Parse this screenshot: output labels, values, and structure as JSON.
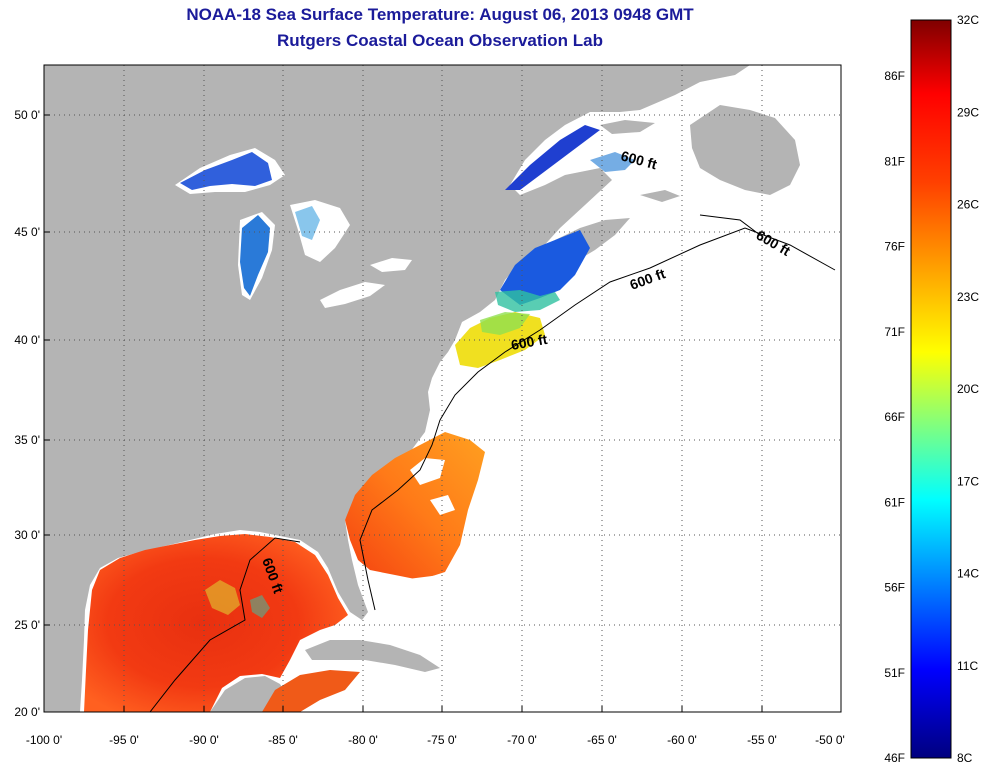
{
  "header": {
    "title_line1": "NOAA-18 Sea Surface Temperature:  August 06, 2013 0948 GMT",
    "title_line2": "Rutgers Coastal Ocean Observation Lab"
  },
  "map": {
    "lon_range": [
      -100,
      -50
    ],
    "lat_range": [
      20,
      52
    ],
    "lon_ticks": [
      "-100 0'",
      "-95 0'",
      "-90 0'",
      "-85 0'",
      "-80 0'",
      "-75 0'",
      "-70 0'",
      "-65 0'",
      "-60 0'",
      "-55 0'",
      "-50 0'"
    ],
    "lat_ticks": [
      "20 0'",
      "25 0'",
      "30 0'",
      "35 0'",
      "40 0'",
      "45 0'",
      "50 0'"
    ],
    "contour_label": "600 ft",
    "colors": {
      "land": "#b4b4b4",
      "no_data": "#ffffff",
      "grid": "#555555"
    }
  },
  "colorbar": {
    "celsius_labels": [
      "32C",
      "29C",
      "26C",
      "23C",
      "20C",
      "17C",
      "14C",
      "11C",
      "8C"
    ],
    "fahrenheit_labels": [
      "86F",
      "81F",
      "76F",
      "71F",
      "66F",
      "61F",
      "56F",
      "51F",
      "46F"
    ],
    "colormap": [
      "#7f0000",
      "#ff0000",
      "#ff8000",
      "#ffff00",
      "#80ff80",
      "#00ffff",
      "#0080ff",
      "#0000ff",
      "#00007f"
    ]
  }
}
